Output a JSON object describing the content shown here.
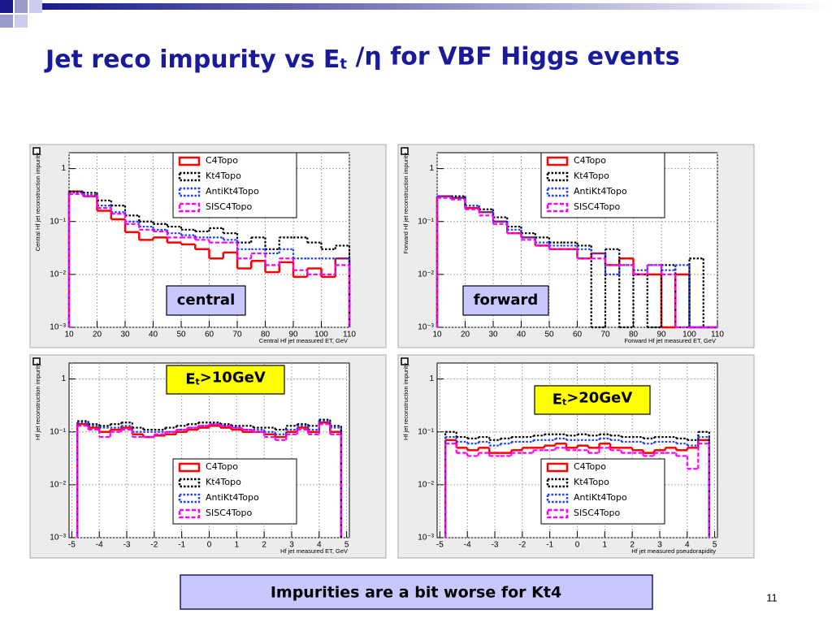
{
  "slide": {
    "title": {
      "text": "Jet reco impurity vs E",
      "sub": "t",
      "tail": " /η for VBF Higgs events"
    },
    "conclusion": "Impurities are a bit worse for Kt4",
    "page_number": "11"
  },
  "chart_data": [
    {
      "type": "histogram",
      "x_label": "Central Hf jet measured ET, GeV",
      "y_label": "Central Hf jet reconstruction impurity",
      "log_y": true,
      "grid": true,
      "legend": "top",
      "annotation": {
        "text": "central",
        "color": "#c8c8ff"
      },
      "xlim": [
        10,
        110
      ],
      "xticks": [
        10,
        20,
        30,
        40,
        50,
        60,
        70,
        80,
        90,
        100,
        110
      ],
      "ylim": [
        0.001,
        2
      ],
      "yticks": [
        {
          "value": 0.001,
          "label": "10⁻³"
        },
        {
          "value": 0.01,
          "label": "10⁻²"
        },
        {
          "value": 0.1,
          "label": "10⁻¹"
        },
        1
      ],
      "bins": [
        10,
        15,
        20,
        25,
        30,
        35,
        40,
        45,
        50,
        55,
        60,
        65,
        70,
        75,
        80,
        85,
        90,
        95,
        100,
        105,
        110
      ],
      "series": [
        {
          "name": "C4Topo",
          "color": "#ff0000",
          "style": "solid",
          "values": [
            0.37,
            0.3,
            0.16,
            0.11,
            0.063,
            0.045,
            0.05,
            0.04,
            0.037,
            0.03,
            0.02,
            0.026,
            0.013,
            0.018,
            0.011,
            0.017,
            0.009,
            0.013,
            0.009,
            0.02
          ]
        },
        {
          "name": "Kt4Topo",
          "color": "#000000",
          "style": "dotted",
          "values": [
            0.37,
            0.35,
            0.25,
            0.2,
            0.13,
            0.1,
            0.09,
            0.08,
            0.07,
            0.065,
            0.075,
            0.06,
            0.04,
            0.05,
            0.03,
            0.05,
            0.05,
            0.04,
            0.03,
            0.035
          ]
        },
        {
          "name": "AntiKt4Topo",
          "color": "#1f3fff",
          "style": "dotted",
          "values": [
            0.35,
            0.32,
            0.2,
            0.15,
            0.1,
            0.08,
            0.07,
            0.06,
            0.055,
            0.05,
            0.05,
            0.045,
            0.03,
            0.03,
            0.025,
            0.03,
            0.02,
            0.02,
            0.02,
            0.02
          ]
        },
        {
          "name": "SISC4Topo",
          "color": "#ff00ff",
          "style": "dashed",
          "values": [
            0.33,
            0.3,
            0.18,
            0.14,
            0.09,
            0.07,
            0.065,
            0.05,
            0.05,
            0.045,
            0.04,
            0.04,
            0.02,
            0.025,
            0.015,
            0.02,
            0.012,
            0.01,
            0.01,
            0.015
          ]
        }
      ]
    },
    {
      "type": "histogram",
      "x_label": "Forward Hf jet measured ET, GeV",
      "y_label": "Forward Hf jet reconstruction impurity",
      "log_y": true,
      "grid": true,
      "legend": "top",
      "annotation": {
        "text": "forward",
        "color": "#c8c8ff"
      },
      "xlim": [
        10,
        110
      ],
      "xticks": [
        10,
        20,
        30,
        40,
        50,
        60,
        70,
        80,
        90,
        100,
        110
      ],
      "ylim": [
        0.001,
        2
      ],
      "yticks": [
        {
          "value": 0.001,
          "label": "10⁻³"
        },
        {
          "value": 0.01,
          "label": "10⁻²"
        },
        {
          "value": 0.1,
          "label": "10⁻¹"
        },
        1
      ],
      "bins": [
        10,
        15,
        20,
        25,
        30,
        35,
        40,
        45,
        50,
        55,
        60,
        65,
        70,
        75,
        80,
        85,
        90,
        95,
        100,
        105,
        110
      ],
      "series": [
        {
          "name": "C4Topo",
          "color": "#ff0000",
          "style": "solid",
          "values": [
            0.3,
            0.28,
            0.18,
            0.15,
            0.1,
            0.06,
            0.05,
            0.035,
            0.03,
            0.03,
            0.02,
            0.025,
            0.015,
            0.02,
            0.01,
            0.01,
            0,
            0.01,
            0,
            0
          ]
        },
        {
          "name": "Kt4Topo",
          "color": "#000000",
          "style": "dotted",
          "values": [
            0.3,
            0.3,
            0.2,
            0.17,
            0.12,
            0.08,
            0.06,
            0.05,
            0.04,
            0.04,
            0.035,
            0,
            0.03,
            0,
            0.01,
            0,
            0.015,
            0,
            0.02,
            0
          ]
        },
        {
          "name": "AntiKt4Topo",
          "color": "#1f3fff",
          "style": "dotted",
          "values": [
            0.3,
            0.28,
            0.2,
            0.15,
            0.1,
            0.07,
            0.05,
            0.04,
            0.035,
            0.035,
            0.03,
            0.025,
            0.01,
            0.015,
            0.012,
            0.015,
            0.012,
            0.015,
            0,
            0
          ]
        },
        {
          "name": "SISC4Topo",
          "color": "#ff00ff",
          "style": "dashed",
          "values": [
            0.28,
            0.26,
            0.17,
            0.13,
            0.09,
            0.06,
            0.045,
            0.035,
            0.03,
            0.03,
            0.02,
            0.02,
            0.015,
            0.015,
            0.01,
            0.015,
            0.01,
            0,
            0,
            0
          ]
        }
      ]
    },
    {
      "type": "histogram",
      "x_label": "Hf jet measured ET, GeV",
      "y_label": "Hf jet reconstruction impurity",
      "log_y": true,
      "grid": true,
      "legend": "bottom",
      "annotation": {
        "text": "E",
        "sub": "t",
        "tail": ">10GeV",
        "color": "#ffff00"
      },
      "xlim": [
        -5.1,
        5.1
      ],
      "xticks": [
        -5,
        -4,
        -3,
        -2,
        -1,
        0,
        1,
        2,
        3,
        4,
        5
      ],
      "ylim": [
        0.001,
        2
      ],
      "yticks": [
        {
          "value": 0.001,
          "label": "10⁻³"
        },
        {
          "value": 0.01,
          "label": "10⁻²"
        },
        {
          "value": 0.1,
          "label": "10⁻¹"
        },
        1
      ],
      "bins": [
        -4.8,
        -4.4,
        -4,
        -3.6,
        -3.2,
        -2.8,
        -2.4,
        -2,
        -1.6,
        -1.2,
        -0.8,
        -0.4,
        0,
        0.4,
        0.8,
        1.2,
        1.6,
        2,
        2.4,
        2.8,
        3.2,
        3.6,
        4,
        4.4,
        4.8
      ],
      "series": [
        {
          "name": "C4Topo",
          "color": "#ff0000",
          "style": "solid",
          "values": [
            0.14,
            0.12,
            0.1,
            0.11,
            0.12,
            0.09,
            0.08,
            0.085,
            0.09,
            0.1,
            0.11,
            0.12,
            0.13,
            0.12,
            0.11,
            0.1,
            0.1,
            0.09,
            0.08,
            0.1,
            0.12,
            0.1,
            0.15,
            0.1
          ]
        },
        {
          "name": "Kt4Topo",
          "color": "#000000",
          "style": "dotted",
          "values": [
            0.16,
            0.14,
            0.13,
            0.14,
            0.15,
            0.12,
            0.11,
            0.11,
            0.12,
            0.13,
            0.14,
            0.15,
            0.15,
            0.14,
            0.13,
            0.13,
            0.12,
            0.12,
            0.11,
            0.13,
            0.14,
            0.13,
            0.17,
            0.13
          ]
        },
        {
          "name": "AntiKt4Topo",
          "color": "#1f3fff",
          "style": "dotted",
          "values": [
            0.15,
            0.13,
            0.12,
            0.12,
            0.13,
            0.1,
            0.1,
            0.1,
            0.1,
            0.11,
            0.12,
            0.13,
            0.14,
            0.13,
            0.12,
            0.11,
            0.11,
            0.1,
            0.09,
            0.11,
            0.13,
            0.11,
            0.16,
            0.12
          ]
        },
        {
          "name": "SISC4Topo",
          "color": "#ff00ff",
          "style": "dashed",
          "values": [
            0.13,
            0.11,
            0.08,
            0.1,
            0.11,
            0.08,
            0.08,
            0.09,
            0.1,
            0.11,
            0.12,
            0.13,
            0.14,
            0.13,
            0.12,
            0.11,
            0.1,
            0.08,
            0.07,
            0.09,
            0.11,
            0.09,
            0.14,
            0.09
          ]
        }
      ]
    },
    {
      "type": "histogram",
      "x_label": "Hf jet measured pseudorapidity",
      "y_label": "Hf jet reconstruction impurity",
      "log_y": true,
      "grid": true,
      "legend": "bottom",
      "annotation": {
        "text": "E",
        "sub": "t",
        "tail": ">20GeV",
        "color": "#ffff00"
      },
      "xlim": [
        -5.1,
        5.1
      ],
      "xticks": [
        -5,
        -4,
        -3,
        -2,
        -1,
        0,
        1,
        2,
        3,
        4,
        5
      ],
      "ylim": [
        0.001,
        2
      ],
      "yticks": [
        {
          "value": 0.001,
          "label": "10⁻³"
        },
        {
          "value": 0.01,
          "label": "10⁻²"
        },
        {
          "value": 0.1,
          "label": "10⁻¹"
        },
        1
      ],
      "bins": [
        -4.8,
        -4.4,
        -4,
        -3.6,
        -3.2,
        -2.8,
        -2.4,
        -2,
        -1.6,
        -1.2,
        -0.8,
        -0.4,
        0,
        0.4,
        0.8,
        1.2,
        1.6,
        2,
        2.4,
        2.8,
        3.2,
        3.6,
        4,
        4.4,
        4.8
      ],
      "series": [
        {
          "name": "C4Topo",
          "color": "#ff0000",
          "style": "solid",
          "values": [
            0.07,
            0.05,
            0.045,
            0.05,
            0.04,
            0.04,
            0.045,
            0.05,
            0.05,
            0.055,
            0.06,
            0.05,
            0.055,
            0.05,
            0.06,
            0.05,
            0.05,
            0.045,
            0.04,
            0.045,
            0.05,
            0.045,
            0.05,
            0.07
          ]
        },
        {
          "name": "Kt4Topo",
          "color": "#000000",
          "style": "dotted",
          "values": [
            0.1,
            0.08,
            0.075,
            0.08,
            0.07,
            0.075,
            0.08,
            0.08,
            0.085,
            0.09,
            0.09,
            0.085,
            0.09,
            0.085,
            0.09,
            0.085,
            0.08,
            0.08,
            0.075,
            0.08,
            0.08,
            0.075,
            0.07,
            0.1
          ]
        },
        {
          "name": "AntiKt4Topo",
          "color": "#1f3fff",
          "style": "dotted",
          "values": [
            0.08,
            0.065,
            0.06,
            0.065,
            0.055,
            0.06,
            0.065,
            0.065,
            0.07,
            0.07,
            0.075,
            0.07,
            0.07,
            0.07,
            0.075,
            0.07,
            0.065,
            0.065,
            0.06,
            0.065,
            0.065,
            0.06,
            0.055,
            0.08
          ]
        },
        {
          "name": "SISC4Topo",
          "color": "#ff00ff",
          "style": "dashed",
          "values": [
            0.06,
            0.04,
            0.035,
            0.04,
            0.035,
            0.035,
            0.04,
            0.04,
            0.045,
            0.045,
            0.05,
            0.045,
            0.045,
            0.04,
            0.05,
            0.045,
            0.04,
            0.04,
            0.035,
            0.04,
            0.04,
            0.035,
            0.02,
            0.06
          ]
        }
      ]
    }
  ]
}
